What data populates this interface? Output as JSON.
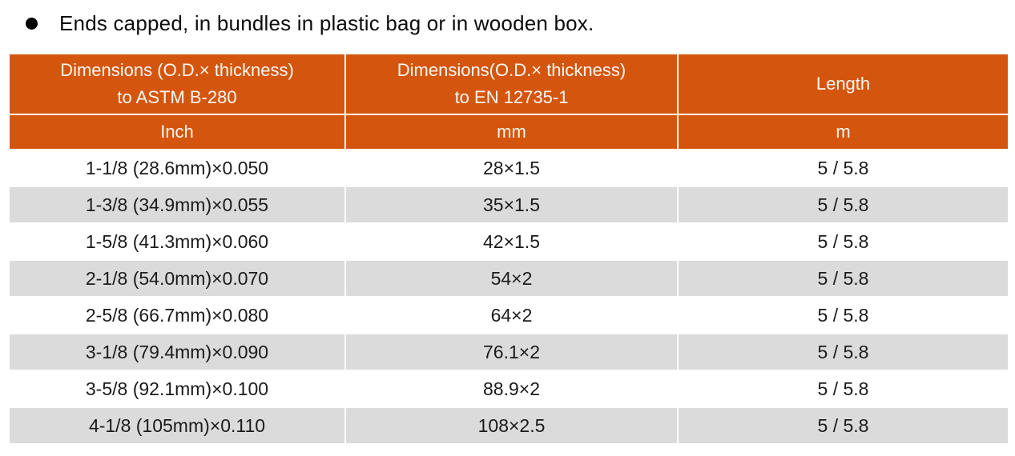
{
  "bullet": {
    "text": "Ends capped, in bundles in plastic bag or in wooden box."
  },
  "table": {
    "header": {
      "col1_line1": "Dimensions (O.D.× thickness)",
      "col1_line2": "to ASTM B-280",
      "col2_line1": "Dimensions(O.D.× thickness)",
      "col2_line2": "to EN 12735-1",
      "col3": "Length",
      "units": [
        "Inch",
        "mm",
        "m"
      ]
    },
    "rows": [
      [
        "1-1/8 (28.6mm)×0.050",
        "28×1.5",
        "5 / 5.8"
      ],
      [
        "1-3/8 (34.9mm)×0.055",
        "35×1.5",
        "5 / 5.8"
      ],
      [
        "1-5/8 (41.3mm)×0.060",
        "42×1.5",
        "5 / 5.8"
      ],
      [
        "2-1/8 (54.0mm)×0.070",
        "54×2",
        "5 / 5.8"
      ],
      [
        "2-5/8 (66.7mm)×0.080",
        "64×2",
        "5 / 5.8"
      ],
      [
        "3-1/8 (79.4mm)×0.090",
        "76.1×2",
        "5 / 5.8"
      ],
      [
        "3-5/8 (92.1mm)×0.100",
        "88.9×2",
        "5 / 5.8"
      ],
      [
        "4-1/8 (105mm)×0.110",
        "108×2.5",
        "5 / 5.8"
      ]
    ]
  },
  "colors": {
    "header_bg": "#d4560e",
    "header_text": "#fdf8f3",
    "row_bg": "#ffffff",
    "row_alt_bg": "#dbdbdb",
    "body_text": "#1b1b1b"
  }
}
